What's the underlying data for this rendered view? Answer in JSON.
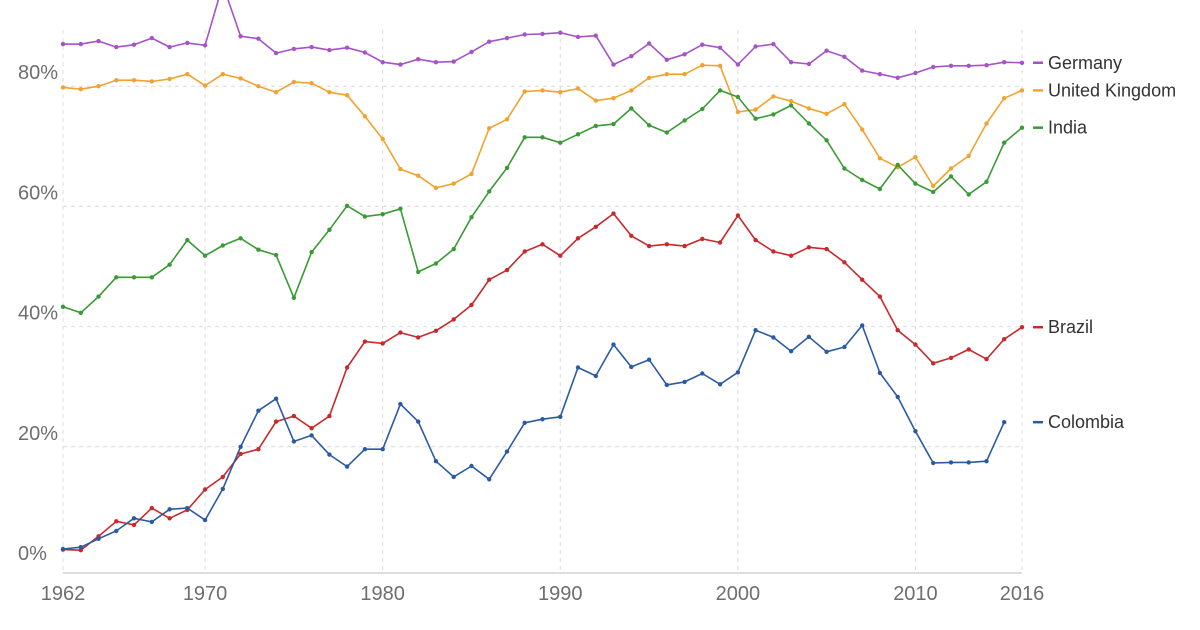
{
  "chart_data": {
    "type": "line",
    "title": "",
    "xlabel": "",
    "ylabel": "",
    "xlim": [
      1962,
      2016
    ],
    "ylim": [
      0,
      100
    ],
    "grid": true,
    "legend_position": "right, at line ends",
    "x_ticks": [
      {
        "value": 1962,
        "label": "1962"
      },
      {
        "value": 1970,
        "label": "1970"
      },
      {
        "value": 1980,
        "label": "1980"
      },
      {
        "value": 1990,
        "label": "1990"
      },
      {
        "value": 2000,
        "label": "2000"
      },
      {
        "value": 2010,
        "label": "2010"
      },
      {
        "value": 2016,
        "label": "2016"
      }
    ],
    "y_ticks": [
      {
        "value": 0,
        "label": "0%"
      },
      {
        "value": 20,
        "label": "20%"
      },
      {
        "value": 40,
        "label": "40%"
      },
      {
        "value": 60,
        "label": "60%"
      },
      {
        "value": 80,
        "label": "80%"
      }
    ],
    "series": [
      {
        "name": "Germany",
        "color": "#a652c9",
        "x": [
          1962,
          1963,
          1964,
          1965,
          1966,
          1967,
          1968,
          1969,
          1970,
          1971,
          1972,
          1973,
          1974,
          1975,
          1976,
          1977,
          1978,
          1979,
          1980,
          1981,
          1982,
          1983,
          1984,
          1985,
          1986,
          1987,
          1988,
          1989,
          1990,
          1991,
          1992,
          1993,
          1994,
          1995,
          1996,
          1997,
          1998,
          1999,
          2000,
          2001,
          2002,
          2003,
          2004,
          2005,
          2006,
          2007,
          2008,
          2009,
          2010,
          2011,
          2012,
          2013,
          2014,
          2015,
          2016
        ],
        "y": [
          87,
          87,
          87.5,
          86.5,
          86.9,
          88,
          86.5,
          87.2,
          86.8,
          96.9,
          88.3,
          87.9,
          85.5,
          86.2,
          86.5,
          86,
          86.4,
          85.6,
          84,
          83.6,
          84.5,
          84,
          84.1,
          85.7,
          87.4,
          88,
          88.6,
          88.7,
          88.9,
          88.2,
          88.4,
          83.6,
          85,
          87.1,
          84.4,
          85.3,
          86.9,
          86.4,
          83.6,
          86.6,
          87,
          84,
          83.7,
          85.9,
          84.9,
          82.6,
          82,
          81.4,
          82.2,
          83.2,
          83.4,
          83.4,
          83.5,
          84,
          83.9
        ]
      },
      {
        "name": "United Kingdom",
        "color": "#f0a32e",
        "x": [
          1962,
          1963,
          1964,
          1965,
          1966,
          1967,
          1968,
          1969,
          1970,
          1971,
          1972,
          1973,
          1974,
          1975,
          1976,
          1977,
          1978,
          1979,
          1980,
          1981,
          1982,
          1983,
          1984,
          1985,
          1986,
          1987,
          1988,
          1989,
          1990,
          1991,
          1992,
          1993,
          1994,
          1995,
          1996,
          1997,
          1998,
          1999,
          2000,
          2001,
          2002,
          2003,
          2004,
          2005,
          2006,
          2007,
          2008,
          2009,
          2010,
          2011,
          2012,
          2013,
          2014,
          2015,
          2016
        ],
        "y": [
          79.8,
          79.5,
          80,
          81,
          81,
          80.8,
          81.2,
          82,
          80.1,
          82,
          81.3,
          80,
          79,
          80.7,
          80.5,
          79,
          78.5,
          75,
          71.2,
          66.2,
          65.1,
          63.1,
          63.8,
          65.4,
          73,
          74.5,
          79.1,
          79.3,
          79,
          79.6,
          77.6,
          78,
          79.3,
          81.4,
          82,
          82,
          83.5,
          83.4,
          75.7,
          76.1,
          78.3,
          77.5,
          76.3,
          75.4,
          77,
          72.8,
          68,
          66.5,
          68.2,
          63.4,
          66.3,
          68.4,
          73.8,
          78,
          79.3
        ]
      },
      {
        "name": "India",
        "color": "#3a9a35",
        "x": [
          1962,
          1963,
          1964,
          1965,
          1966,
          1967,
          1968,
          1969,
          1970,
          1971,
          1972,
          1973,
          1974,
          1975,
          1976,
          1977,
          1978,
          1979,
          1980,
          1981,
          1982,
          1983,
          1984,
          1985,
          1986,
          1987,
          1988,
          1989,
          1990,
          1991,
          1992,
          1993,
          1994,
          1995,
          1996,
          1997,
          1998,
          1999,
          2000,
          2001,
          2002,
          2003,
          2004,
          2005,
          2006,
          2007,
          2008,
          2009,
          2010,
          2011,
          2012,
          2013,
          2014,
          2015,
          2016
        ],
        "y": [
          43.3,
          42.3,
          45,
          48.2,
          48.2,
          48.2,
          50.3,
          54.4,
          51.8,
          53.5,
          54.7,
          52.8,
          51.9,
          44.8,
          52.4,
          56.1,
          60.1,
          58.3,
          58.7,
          59.6,
          49.1,
          50.5,
          52.9,
          58.2,
          62.5,
          66.4,
          71.5,
          71.5,
          70.6,
          72,
          73.4,
          73.7,
          76.3,
          73.5,
          72.3,
          74.3,
          76.2,
          79.3,
          78.2,
          74.6,
          75.3,
          76.8,
          73.8,
          71,
          66.3,
          64.4,
          62.9,
          66.9,
          63.8,
          62.4,
          65,
          62,
          64.1,
          70.6,
          73.1
        ]
      },
      {
        "name": "Brazil",
        "color": "#c8292b",
        "x": [
          1962,
          1963,
          1964,
          1965,
          1966,
          1967,
          1968,
          1969,
          1970,
          1971,
          1972,
          1973,
          1974,
          1975,
          1976,
          1977,
          1978,
          1979,
          1980,
          1981,
          1982,
          1983,
          1984,
          1985,
          1986,
          1987,
          1988,
          1989,
          1990,
          1991,
          1992,
          1993,
          1994,
          1995,
          1996,
          1997,
          1998,
          1999,
          2000,
          2001,
          2002,
          2003,
          2004,
          2005,
          2006,
          2007,
          2008,
          2009,
          2010,
          2011,
          2012,
          2013,
          2014,
          2015,
          2016
        ],
        "y": [
          2.9,
          2.8,
          5.1,
          7.6,
          7,
          9.8,
          8.1,
          9.5,
          12.9,
          15,
          18.8,
          19.6,
          24.2,
          25.1,
          23.1,
          25.1,
          33.2,
          37.5,
          37.2,
          39,
          38.2,
          39.3,
          41.2,
          43.6,
          47.8,
          49.4,
          52.5,
          53.7,
          51.8,
          54.7,
          56.6,
          58.8,
          55.1,
          53.4,
          53.7,
          53.4,
          54.6,
          54,
          58.5,
          54.4,
          52.5,
          51.8,
          53.2,
          52.9,
          50.7,
          47.8,
          45,
          39.4,
          37,
          33.9,
          34.8,
          36.2,
          34.6,
          37.9,
          39.9
        ]
      },
      {
        "name": "Colombia",
        "color": "#2b5aa4",
        "x": [
          1962,
          1963,
          1964,
          1965,
          1966,
          1967,
          1968,
          1969,
          1970,
          1971,
          1972,
          1973,
          1974,
          1975,
          1976,
          1977,
          1978,
          1979,
          1980,
          1981,
          1982,
          1983,
          1984,
          1985,
          1986,
          1987,
          1988,
          1989,
          1990,
          1991,
          1992,
          1993,
          1994,
          1995,
          1996,
          1997,
          1998,
          1999,
          2000,
          2001,
          2002,
          2003,
          2004,
          2005,
          2006,
          2007,
          2008,
          2009,
          2010,
          2011,
          2012,
          2013,
          2014,
          2015
        ],
        "y": [
          3,
          3.3,
          4.7,
          6,
          8.1,
          7.5,
          9.6,
          9.8,
          7.8,
          13,
          20,
          26,
          28,
          20.9,
          21.9,
          18.7,
          16.7,
          19.6,
          19.6,
          27.1,
          24.2,
          17.6,
          15,
          16.8,
          14.6,
          19.2,
          24,
          24.6,
          25,
          33.2,
          31.8,
          37,
          33.3,
          34.5,
          30.3,
          30.8,
          32.2,
          30.4,
          32.4,
          39.4,
          38.2,
          35.9,
          38.3,
          35.8,
          36.6,
          40.2,
          32.3,
          28.3,
          22.6,
          17.3,
          17.4,
          17.4,
          17.6,
          24.1
        ]
      }
    ]
  }
}
